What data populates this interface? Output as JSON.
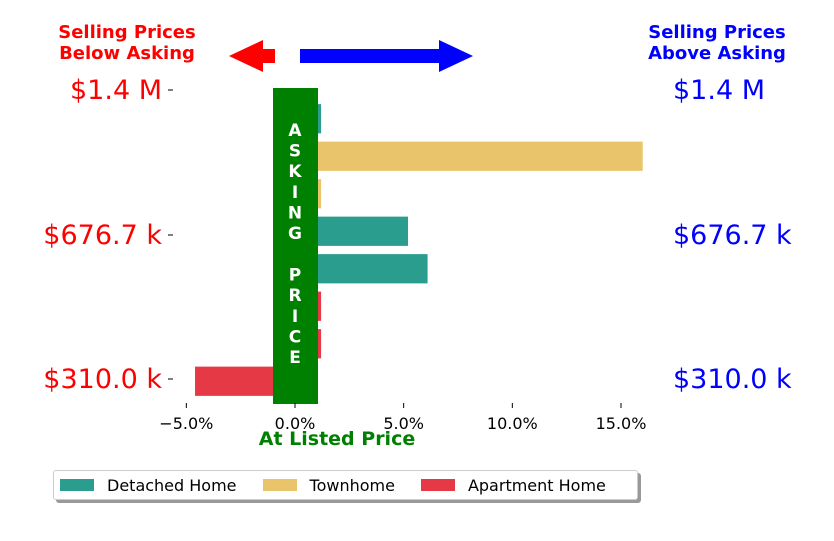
{
  "chart_data": {
    "type": "bar",
    "orientation": "horizontal",
    "headers": {
      "left": "Selling Prices\nBelow Asking",
      "right": "Selling Prices\nAbove Asking",
      "left_color": "#ff0000",
      "right_color": "#0000ff"
    },
    "vertical_label": "ASKING  PRICE",
    "vertical_label_color": "#008000",
    "xlabel": "At Listed Price",
    "xlabel_color": "#008000",
    "xlim": [
      -5.3,
      16.5
    ],
    "x_ticks": [
      "−5.0%",
      "0.0%",
      "5.0%",
      "10.0%",
      "15.0%"
    ],
    "x_tick_values": [
      -5,
      0,
      5,
      10,
      15
    ],
    "y_tick_labels_left": [
      "$1.4 M",
      "$676.7 k",
      "$310.0 k"
    ],
    "y_tick_labels_right": [
      "$1.4 M",
      "$676.7 k",
      "$310.0 k"
    ],
    "series": [
      {
        "name": "Detached Home",
        "color": "#2a9d8f"
      },
      {
        "name": "Townhome",
        "color": "#e9c46a"
      },
      {
        "name": "Apartment Home",
        "color": "#e63946"
      }
    ],
    "bars": [
      {
        "series": "Detached Home",
        "value": 1.2
      },
      {
        "series": "Townhome",
        "value": 16.0
      },
      {
        "series": "Townhome",
        "value": 1.2
      },
      {
        "series": "Detached Home",
        "value": 5.2
      },
      {
        "series": "Detached Home",
        "value": 6.1
      },
      {
        "series": "Apartment Home",
        "value": 1.2
      },
      {
        "series": "Apartment Home",
        "value": 1.2
      },
      {
        "series": "Apartment Home",
        "value": -4.6
      }
    ]
  }
}
